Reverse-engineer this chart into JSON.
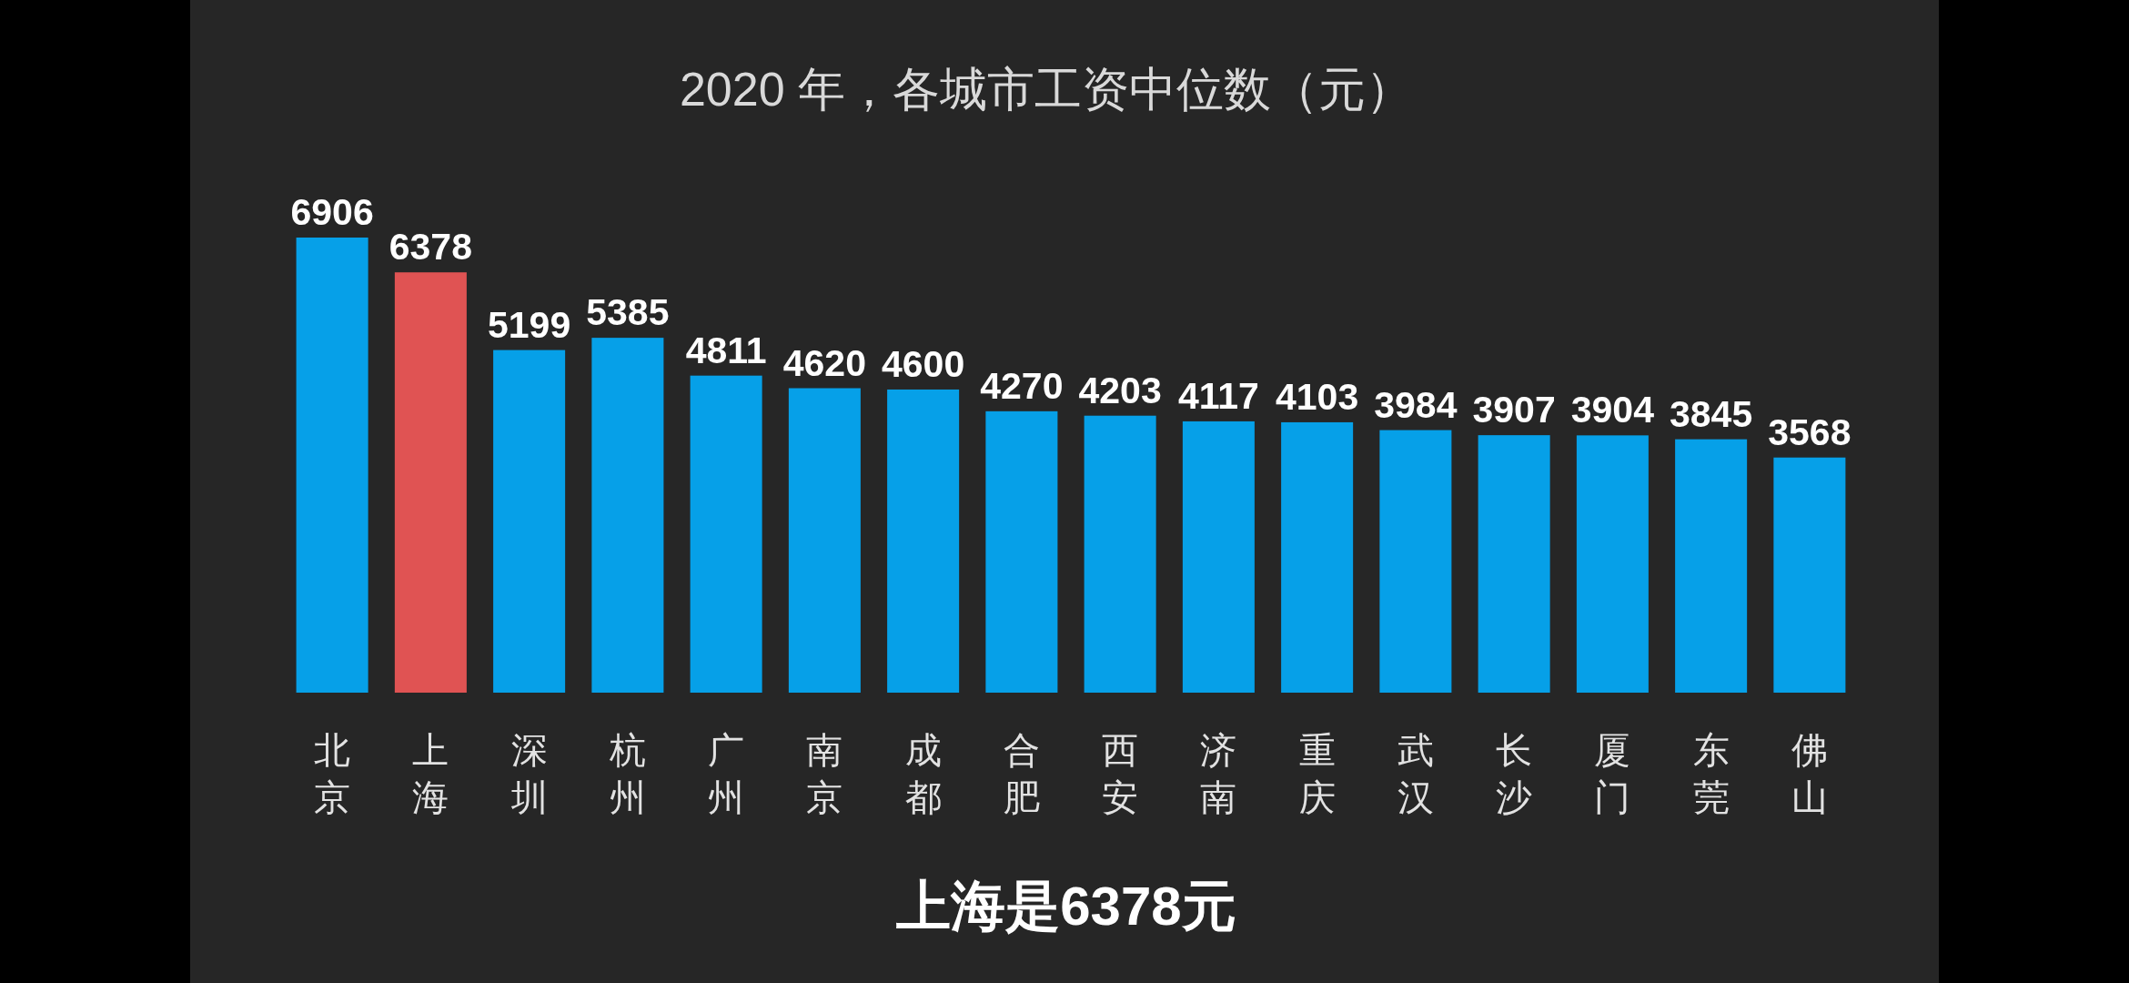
{
  "chart_data": {
    "type": "bar",
    "title": "2020 年，各城市工资中位数（元）",
    "categories": [
      "北京",
      "上海",
      "深圳",
      "杭州",
      "广州",
      "南京",
      "成都",
      "合肥",
      "西安",
      "济南",
      "重庆",
      "武汉",
      "长沙",
      "厦门",
      "东莞",
      "佛山"
    ],
    "values": [
      6906,
      6378,
      5199,
      5385,
      4811,
      4620,
      4600,
      4270,
      4203,
      4117,
      4103,
      3984,
      3907,
      3904,
      3845,
      3568
    ],
    "colors": [
      "#06a0e8",
      "#e05353",
      "#06a0e8",
      "#06a0e8",
      "#06a0e8",
      "#06a0e8",
      "#06a0e8",
      "#06a0e8",
      "#06a0e8",
      "#06a0e8",
      "#06a0e8",
      "#06a0e8",
      "#06a0e8",
      "#06a0e8",
      "#06a0e8",
      "#06a0e8"
    ],
    "data_labels": true,
    "annotations": [
      "上海是6378元"
    ]
  }
}
